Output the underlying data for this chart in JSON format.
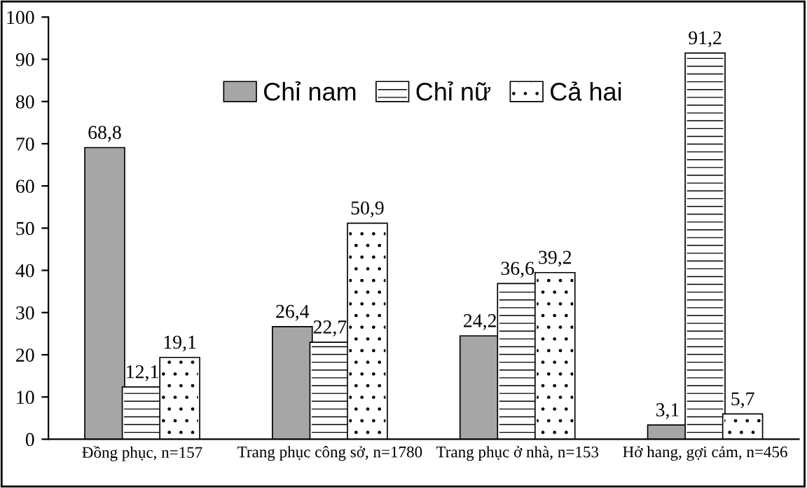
{
  "chart_data": {
    "type": "bar",
    "categories": [
      "Đồng phục, n=157",
      "Trang phục công sở, n=1780",
      "Trang phục ở nhà, n=153",
      "Hở hang, gợi cảm, n=456"
    ],
    "series": [
      {
        "name": "Chỉ nam",
        "color": "#a6a6a6",
        "values": [
          68.8,
          26.4,
          24.2,
          3.1
        ],
        "value_labels": [
          "68,8",
          "26,4",
          "24,2",
          "3,1"
        ]
      },
      {
        "name": "Chỉ nữ",
        "color": "#ffffff",
        "values": [
          12.1,
          22.7,
          36.6,
          91.2
        ],
        "value_labels": [
          "12,1",
          "22,7",
          "36,6",
          "91,2"
        ]
      },
      {
        "name": "Cả hai",
        "color": "#ffffff",
        "values": [
          19.1,
          50.9,
          39.2,
          5.7
        ],
        "value_labels": [
          "19,1",
          "50,9",
          "39,2",
          "5,7"
        ]
      }
    ],
    "ylim": [
      0,
      100
    ],
    "yticks": [
      0,
      10,
      20,
      30,
      40,
      50,
      60,
      70,
      80,
      90,
      100
    ],
    "grid": false,
    "legend": "top"
  }
}
